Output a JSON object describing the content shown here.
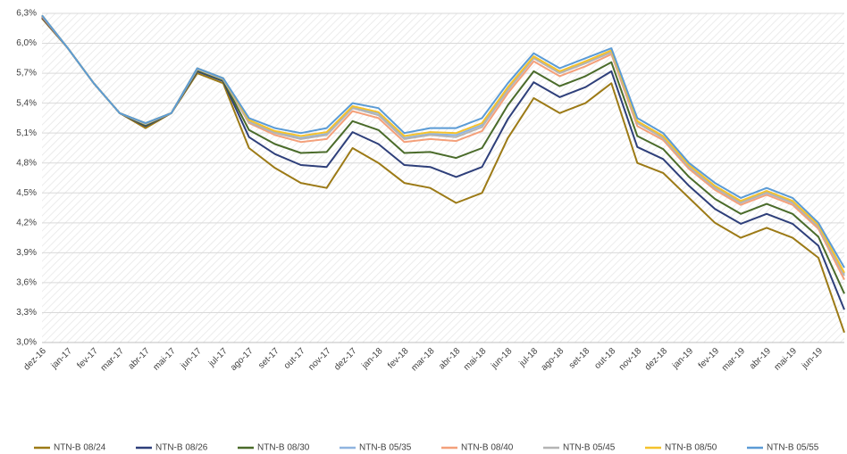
{
  "chart_data": {
    "type": "line",
    "categories": [
      "dez-16",
      "jan-17",
      "fev-17",
      "mar-17",
      "abr-17",
      "mai-17",
      "jun-17",
      "jul-17",
      "ago-17",
      "set-17",
      "out-17",
      "nov-17",
      "dez-17",
      "jan-18",
      "fev-18",
      "mar-18",
      "abr-18",
      "mai-18",
      "jun-18",
      "jul-18",
      "ago-18",
      "set-18",
      "out-18",
      "nov-18",
      "dez-18",
      "jan-19",
      "fev-19",
      "mar-19",
      "abr-19",
      "mai-19",
      "jun-19",
      null
    ],
    "ylim": [
      3.0,
      6.3
    ],
    "yticks": [
      {
        "value": 3.0,
        "label": "3,0%"
      },
      {
        "value": 3.3,
        "label": "3,3%"
      },
      {
        "value": 3.6,
        "label": "3,6%"
      },
      {
        "value": 3.9,
        "label": "3,9%"
      },
      {
        "value": 4.2,
        "label": "4,2%"
      },
      {
        "value": 4.5,
        "label": "4,5%"
      },
      {
        "value": 4.8,
        "label": "4,8%"
      },
      {
        "value": 5.1,
        "label": "5,1%"
      },
      {
        "value": 5.4,
        "label": "5,4%"
      },
      {
        "value": 5.7,
        "label": "5,7%"
      },
      {
        "value": 6.0,
        "label": "6,0%"
      },
      {
        "value": 6.3,
        "label": "6,3%"
      }
    ],
    "grid": true,
    "legend": "bottom",
    "series": [
      {
        "name": "NTN-B 08/24",
        "color": "#9c7a16",
        "values": [
          6.25,
          5.95,
          5.6,
          5.3,
          5.15,
          5.3,
          5.7,
          5.6,
          4.95,
          4.75,
          4.6,
          4.55,
          4.95,
          4.8,
          4.6,
          4.55,
          4.4,
          4.5,
          5.05,
          5.45,
          5.3,
          5.4,
          5.6,
          4.8,
          4.7,
          4.45,
          4.2,
          4.05,
          4.15,
          4.05,
          3.85,
          3.1
        ]
      },
      {
        "name": "NTN-B 08/26",
        "color": "#2e3f7a",
        "values": [
          6.26,
          5.95,
          5.6,
          5.3,
          5.17,
          5.3,
          5.72,
          5.62,
          5.06,
          4.89,
          4.78,
          4.76,
          5.11,
          4.99,
          4.78,
          4.76,
          4.66,
          4.76,
          5.24,
          5.61,
          5.46,
          5.56,
          5.72,
          4.96,
          4.84,
          4.57,
          4.34,
          4.19,
          4.29,
          4.19,
          3.97,
          3.33
        ]
      },
      {
        "name": "NTN-B 08/30",
        "color": "#4a6b2a",
        "values": [
          6.27,
          5.95,
          5.6,
          5.3,
          5.18,
          5.3,
          5.73,
          5.63,
          5.13,
          4.99,
          4.9,
          4.91,
          5.22,
          5.13,
          4.9,
          4.91,
          4.85,
          4.95,
          5.38,
          5.72,
          5.57,
          5.67,
          5.81,
          5.07,
          4.94,
          4.66,
          4.44,
          4.29,
          4.39,
          4.29,
          4.06,
          3.49
        ]
      },
      {
        "name": "NTN-B 05/35",
        "color": "#8fb4e0",
        "values": [
          6.28,
          5.95,
          5.6,
          5.3,
          5.2,
          5.3,
          5.75,
          5.65,
          5.22,
          5.11,
          5.05,
          5.09,
          5.36,
          5.3,
          5.05,
          5.09,
          5.08,
          5.18,
          5.55,
          5.86,
          5.71,
          5.81,
          5.92,
          5.21,
          5.06,
          4.77,
          4.56,
          4.41,
          4.51,
          4.41,
          4.17,
          3.69
        ]
      },
      {
        "name": "NTN-B 08/40",
        "color": "#f4a07a",
        "values": [
          6.27,
          5.95,
          5.6,
          5.3,
          5.19,
          5.3,
          5.74,
          5.64,
          5.2,
          5.08,
          5.01,
          5.04,
          5.32,
          5.25,
          5.01,
          5.04,
          5.02,
          5.12,
          5.5,
          5.82,
          5.67,
          5.77,
          5.89,
          5.17,
          5.03,
          4.74,
          4.53,
          4.38,
          4.48,
          4.38,
          4.14,
          3.63
        ]
      },
      {
        "name": "NTN-B 05/45",
        "color": "#b4b4b4",
        "values": [
          6.28,
          5.95,
          5.6,
          5.3,
          5.19,
          5.3,
          5.74,
          5.64,
          5.21,
          5.1,
          5.04,
          5.08,
          5.35,
          5.28,
          5.04,
          5.08,
          5.06,
          5.16,
          5.53,
          5.85,
          5.7,
          5.8,
          5.91,
          5.2,
          5.05,
          4.76,
          4.55,
          4.4,
          4.5,
          4.4,
          4.16,
          3.67
        ]
      },
      {
        "name": "NTN-B 08/50",
        "color": "#f5c22c",
        "values": [
          6.28,
          5.95,
          5.6,
          5.3,
          5.2,
          5.3,
          5.75,
          5.65,
          5.23,
          5.12,
          5.07,
          5.11,
          5.37,
          5.31,
          5.07,
          5.11,
          5.1,
          5.2,
          5.56,
          5.87,
          5.72,
          5.82,
          5.93,
          5.22,
          5.07,
          4.78,
          4.57,
          4.42,
          4.52,
          4.42,
          4.18,
          3.7
        ]
      },
      {
        "name": "NTN-B 05/55",
        "color": "#5b9bd5",
        "values": [
          6.28,
          5.95,
          5.6,
          5.3,
          5.2,
          5.3,
          5.75,
          5.65,
          5.25,
          5.15,
          5.1,
          5.15,
          5.4,
          5.35,
          5.1,
          5.15,
          5.15,
          5.25,
          5.6,
          5.9,
          5.75,
          5.85,
          5.95,
          5.25,
          5.1,
          4.8,
          4.6,
          4.45,
          4.55,
          4.45,
          4.2,
          3.75
        ]
      }
    ]
  }
}
